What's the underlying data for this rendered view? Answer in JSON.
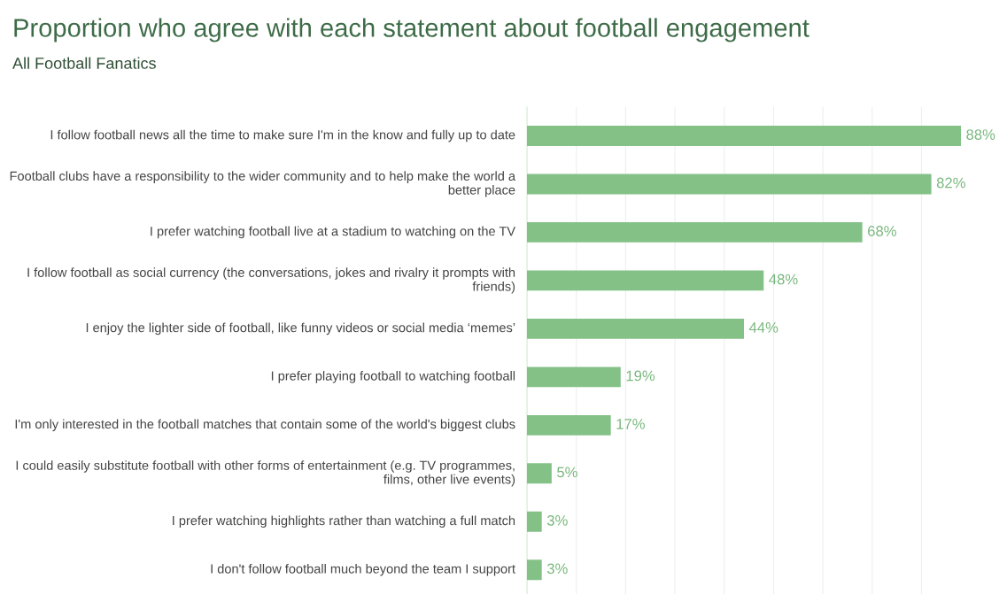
{
  "chart_data": {
    "type": "bar",
    "orientation": "horizontal",
    "title": "Proportion who agree with each statement about football engagement",
    "subtitle": "All Football Fanatics",
    "categories": [
      "I follow football news all the time to make sure I'm in the know and fully up to date",
      "Football clubs have a responsibility to the wider community and to help make the world a better place",
      "I prefer watching football live at a stadium to watching on the TV",
      "I follow football as social currency (the conversations, jokes and rivalry it prompts with friends)",
      "I enjoy the lighter side of football, like funny videos or social media ‘memes’",
      "I prefer playing football to watching football",
      "I'm only interested in the football matches that contain some of the world's biggest clubs",
      "I could easily substitute football with other forms of entertainment (e.g. TV programmes, films, other live events)",
      "I prefer watching highlights rather than watching a full match",
      "I don't follow football much beyond the team I support"
    ],
    "values": [
      88,
      82,
      68,
      48,
      44,
      19,
      17,
      5,
      3,
      3
    ],
    "value_labels": [
      "88%",
      "82%",
      "68%",
      "48%",
      "44%",
      "19%",
      "17%",
      "5%",
      "3%",
      "3%"
    ],
    "color": "#84c187",
    "grid": "x",
    "legend": false
  }
}
